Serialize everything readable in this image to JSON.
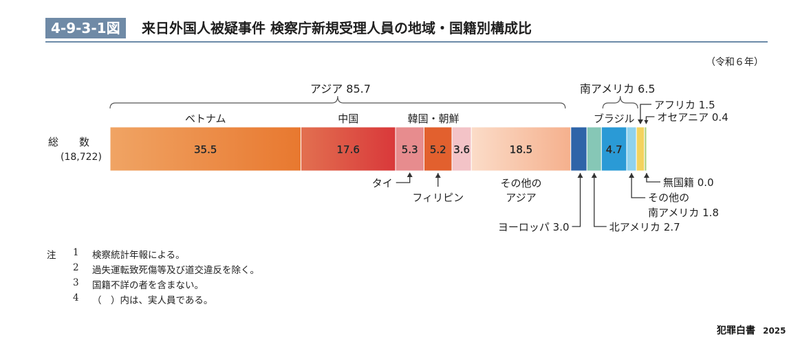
{
  "figure": {
    "number": "4-9-3-1図",
    "title": "来日外国人被疑事件 検察庁新規受理人員の地域・国籍別構成比",
    "year_note": "（令和６年）"
  },
  "chart_data": {
    "type": "bar",
    "orientation": "horizontal-stacked-100",
    "row_label": "総　　数",
    "row_total": "(18,722)",
    "segments": [
      {
        "label": "ベトナム",
        "value": 35.5,
        "value_text": "35.5",
        "color": "#e8782f"
      },
      {
        "label": "中国",
        "value": 17.6,
        "value_text": "17.6",
        "color": "#d9383a"
      },
      {
        "label": "タイ",
        "value": 5.3,
        "value_text": "5.3",
        "color": "#e78c8e"
      },
      {
        "label": "フィリピン",
        "value": 5.2,
        "value_text": "5.2",
        "color": "#e2602e"
      },
      {
        "label": "韓国・朝鮮",
        "value": 3.6,
        "value_text": "3.6",
        "color": "#f3c3c7"
      },
      {
        "label": "その他のアジア",
        "value": 18.5,
        "value_text": "18.5",
        "color": "#f5b08d"
      },
      {
        "label": "ヨーロッパ",
        "value": 3.0,
        "value_text": "",
        "color": "#2f64a8"
      },
      {
        "label": "北アメリカ",
        "value": 2.7,
        "value_text": "",
        "color": "#86c7b6"
      },
      {
        "label": "ブラジル",
        "value": 4.7,
        "value_text": "4.7",
        "color": "#2a9ad6"
      },
      {
        "label": "その他の南アメリカ",
        "value": 1.8,
        "value_text": "",
        "color": "#8ed2ee"
      },
      {
        "label": "アフリカ",
        "value": 1.5,
        "value_text": "",
        "color": "#f3d35e"
      },
      {
        "label": "オセアニア",
        "value": 0.4,
        "value_text": "",
        "color": "#a9cf7a"
      },
      {
        "label": "無国籍",
        "value": 0.0,
        "value_text": "",
        "color": "#7aa0c9"
      }
    ],
    "groups": [
      {
        "label": "アジア 85.7",
        "value": 85.7
      },
      {
        "label": "南アメリカ 6.5",
        "value": 6.5
      }
    ],
    "top_labels": [
      "ベトナム",
      "中国",
      "韓国・朝鮮",
      "ブラジル"
    ],
    "callouts": {
      "thai": "タイ",
      "philippines": "フィリピン",
      "other_asia_1": "その他の",
      "other_asia_2": "アジア",
      "europe": "ヨーロッパ 3.0",
      "north_america": "北アメリカ 2.7",
      "africa": "アフリカ 1.5",
      "oceania": "オセアニア 0.4",
      "stateless": "無国籍 0.0",
      "other_sa_1": "その他の",
      "other_sa_2": "南アメリカ 1.8"
    }
  },
  "notes": [
    {
      "head": "注",
      "num": "1",
      "text": "検察統計年報による。"
    },
    {
      "head": "",
      "num": "2",
      "text": "過失運転致死傷等及び道交違反を除く。"
    },
    {
      "head": "",
      "num": "3",
      "text": "国籍不詳の者を含まない。"
    },
    {
      "head": "",
      "num": "4",
      "text": "（　）内は、実人員である。"
    }
  ],
  "footer": {
    "brand": "犯罪白書",
    "year": "2025"
  }
}
